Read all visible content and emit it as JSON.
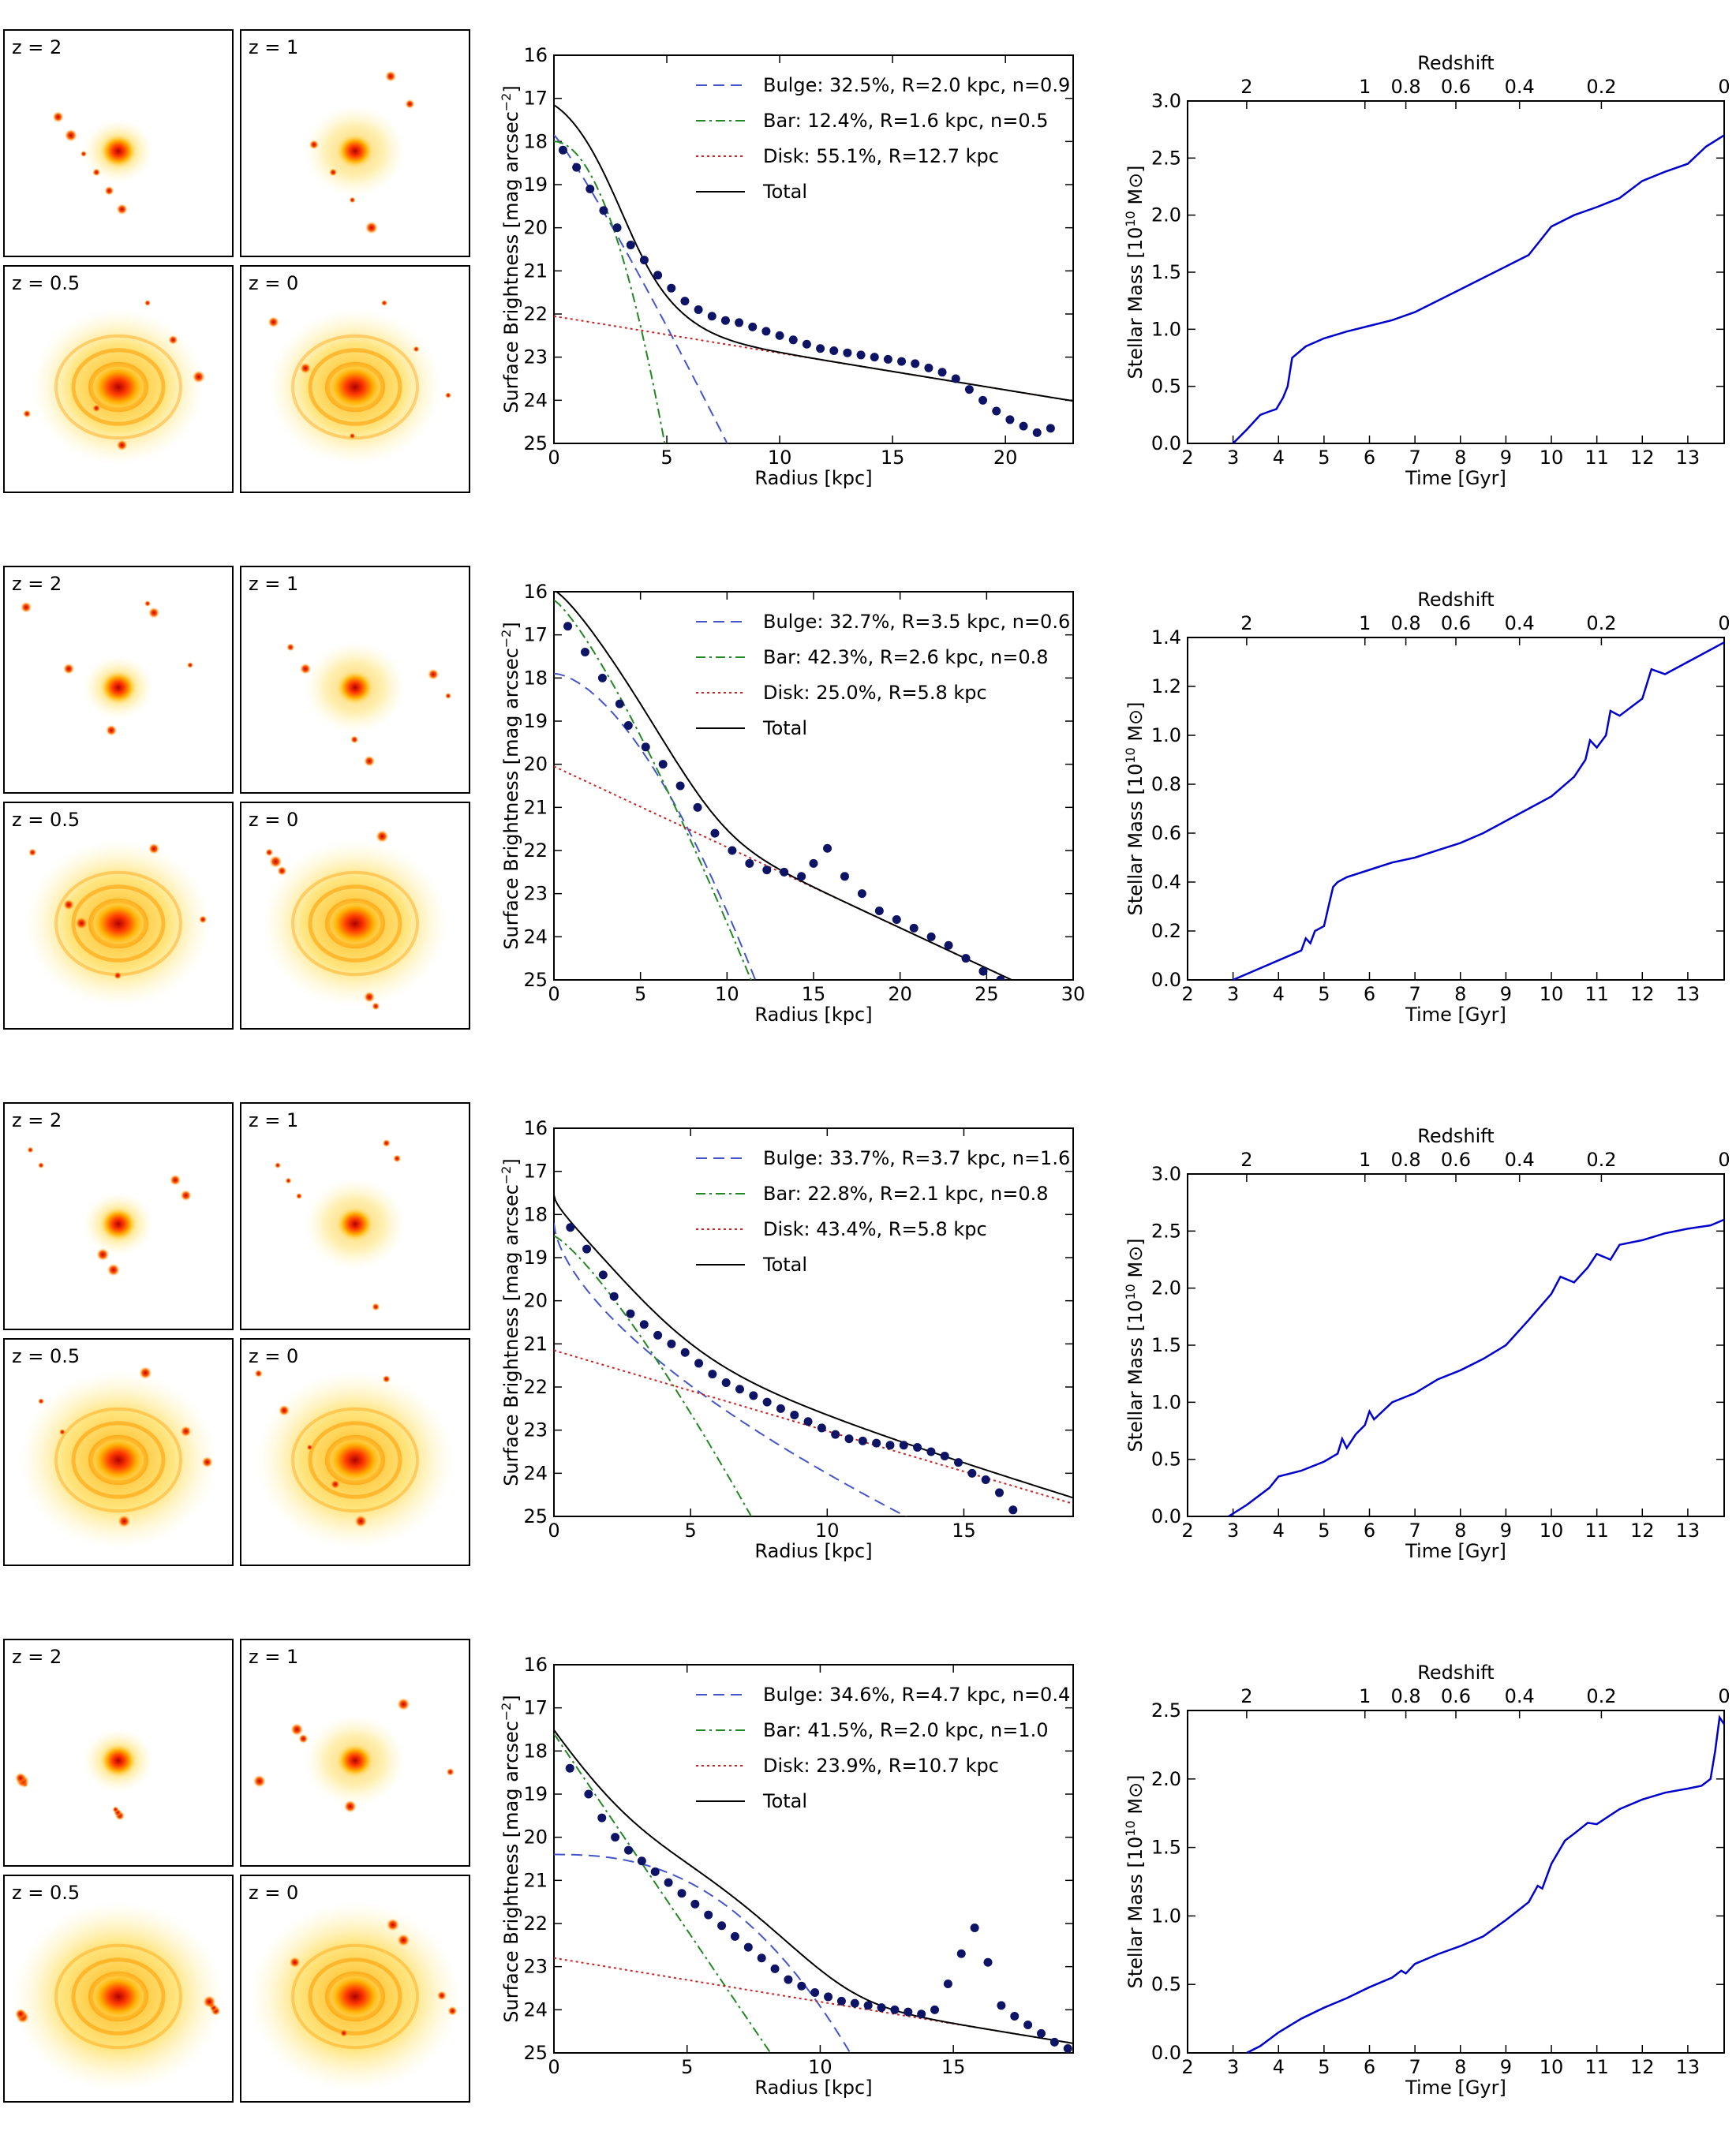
{
  "figure": {
    "colors": {
      "bulge": "#4455cc",
      "bar": "#228822",
      "disk": "#cc2222",
      "total": "#000000",
      "points": "#0d1466",
      "mass": "#0000cc"
    }
  },
  "rows": [
    {
      "image_labels": [
        "z = 2",
        "z = 1",
        "z = 0.5",
        "z = 0"
      ],
      "profile": {
        "type": "line",
        "xlabel": "Radius [kpc]",
        "ylabel": "Surface Brightness [mag arcsec$^{-2}$]",
        "ylabel_main": "Surface Brightness [mag arcsec",
        "ylabel_sup": "−2",
        "ylabel_end": "]",
        "xlim": [
          0,
          23
        ],
        "ylim": [
          25,
          16
        ],
        "xticks": [
          0,
          5,
          10,
          15,
          20
        ],
        "yticks": [
          16,
          17,
          18,
          19,
          20,
          21,
          22,
          23,
          24,
          25
        ],
        "components": {
          "bulge": {
            "label": "Bulge:  32.5%, R=2.0 kpc, n=0.9",
            "mu0": 17.85,
            "re": 2.0,
            "n": 0.9
          },
          "bar": {
            "label": "Bar:  12.4%, R=1.6 kpc, n=0.5",
            "mu0": 18.0,
            "re": 1.6,
            "n": 0.5
          },
          "disk": {
            "label": "Disk:  55.1%, R=12.7 kpc",
            "mu0": 22.05,
            "h": 12.7
          },
          "total": {
            "label": "Total"
          }
        },
        "points": {
          "r": [
            0.4,
            1.0,
            1.6,
            2.2,
            2.8,
            3.4,
            4.0,
            4.6,
            5.2,
            5.8,
            6.4,
            7.0,
            7.6,
            8.2,
            8.8,
            9.4,
            10.0,
            10.6,
            11.2,
            11.8,
            12.4,
            13.0,
            13.6,
            14.2,
            14.8,
            15.4,
            16.0,
            16.6,
            17.2,
            17.8,
            18.4,
            19.0,
            19.6,
            20.2,
            20.8,
            21.4,
            22.0
          ],
          "mu": [
            18.2,
            18.6,
            19.1,
            19.6,
            20.0,
            20.4,
            20.75,
            21.1,
            21.4,
            21.7,
            21.9,
            22.05,
            22.15,
            22.2,
            22.3,
            22.4,
            22.5,
            22.6,
            22.7,
            22.8,
            22.85,
            22.9,
            22.95,
            23.0,
            23.05,
            23.1,
            23.15,
            23.25,
            23.35,
            23.5,
            23.75,
            24.0,
            24.25,
            24.45,
            24.6,
            24.75,
            24.65
          ]
        }
      },
      "mass": {
        "type": "line",
        "xlabel": "Time [Gyr]",
        "toplabel": "Redshift",
        "ylabel_main": "Stellar Mass [10",
        "ylabel_sup": "10",
        "ylabel_end": " M⊙]",
        "xlim": [
          2,
          13.8
        ],
        "ylim": [
          0,
          3.0
        ],
        "xticks": [
          2,
          3,
          4,
          5,
          6,
          7,
          8,
          9,
          10,
          11,
          12,
          13
        ],
        "yticks": [
          0.0,
          0.5,
          1.0,
          1.5,
          2.0,
          2.5,
          3.0
        ],
        "ytick_labels": [
          "0.0",
          "0.5",
          "1.0",
          "1.5",
          "2.0",
          "2.5",
          "3.0"
        ],
        "z_ticks": [
          {
            "z": "2",
            "t": 3.3
          },
          {
            "z": "1",
            "t": 5.9
          },
          {
            "z": "0.8",
            "t": 6.8
          },
          {
            "z": "0.6",
            "t": 7.9
          },
          {
            "z": "0.4",
            "t": 9.3
          },
          {
            "z": "0.2",
            "t": 11.1
          },
          {
            "z": "0",
            "t": 13.8
          }
        ],
        "t": [
          3.0,
          3.3,
          3.6,
          3.8,
          3.95,
          4.1,
          4.2,
          4.3,
          4.6,
          5.0,
          5.5,
          6.0,
          6.5,
          7.0,
          7.5,
          8.0,
          8.5,
          9.0,
          9.5,
          10.0,
          10.5,
          11.0,
          11.5,
          12.0,
          12.5,
          13.0,
          13.4,
          13.8
        ],
        "m": [
          0.0,
          0.12,
          0.25,
          0.28,
          0.3,
          0.4,
          0.5,
          0.75,
          0.85,
          0.92,
          0.98,
          1.03,
          1.08,
          1.15,
          1.25,
          1.35,
          1.45,
          1.55,
          1.65,
          1.9,
          2.0,
          2.07,
          2.15,
          2.3,
          2.38,
          2.45,
          2.6,
          2.7
        ]
      }
    },
    {
      "image_labels": [
        "z = 2",
        "z = 1",
        "z = 0.5",
        "z = 0"
      ],
      "profile": {
        "type": "line",
        "xlabel": "Radius [kpc]",
        "ylabel": "Surface Brightness [mag arcsec$^{-2}$]",
        "ylabel_main": "Surface Brightness [mag arcsec",
        "ylabel_sup": "−2",
        "ylabel_end": "]",
        "xlim": [
          0,
          30
        ],
        "ylim": [
          25,
          16
        ],
        "xticks": [
          0,
          5,
          10,
          15,
          20,
          25,
          30
        ],
        "yticks": [
          16,
          17,
          18,
          19,
          20,
          21,
          22,
          23,
          24,
          25
        ],
        "components": {
          "bulge": {
            "label": "Bulge:  32.7%, R=3.5 kpc, n=0.6",
            "mu0": 17.9,
            "re": 3.5,
            "n": 0.6
          },
          "bar": {
            "label": "Bar:  42.3%, R=2.6 kpc, n=0.8",
            "mu0": 16.2,
            "re": 2.6,
            "n": 0.8
          },
          "disk": {
            "label": "Disk:  25.0%, R=5.8 kpc",
            "mu0": 20.05,
            "h": 5.8
          },
          "total": {
            "label": "Total"
          }
        },
        "points": {
          "r": [
            0.8,
            1.8,
            2.8,
            3.8,
            4.3,
            5.3,
            6.3,
            7.3,
            8.3,
            9.3,
            10.3,
            11.3,
            12.3,
            13.3,
            14.3,
            15.0,
            15.8,
            16.8,
            17.8,
            18.8,
            19.8,
            20.8,
            21.8,
            22.8,
            23.8,
            24.8,
            25.8
          ],
          "mu": [
            16.8,
            17.4,
            18.0,
            18.6,
            19.1,
            19.6,
            20.0,
            20.5,
            21.0,
            21.6,
            22.0,
            22.3,
            22.45,
            22.5,
            22.6,
            22.3,
            21.95,
            22.6,
            23.0,
            23.4,
            23.6,
            23.8,
            24.0,
            24.2,
            24.5,
            24.8,
            25.0
          ]
        }
      },
      "mass": {
        "type": "line",
        "xlabel": "Time [Gyr]",
        "toplabel": "Redshift",
        "ylabel_main": "Stellar Mass [10",
        "ylabel_sup": "10",
        "ylabel_end": " M⊙]",
        "xlim": [
          2,
          13.8
        ],
        "ylim": [
          0,
          1.4
        ],
        "xticks": [
          2,
          3,
          4,
          5,
          6,
          7,
          8,
          9,
          10,
          11,
          12,
          13
        ],
        "yticks": [
          0.0,
          0.2,
          0.4,
          0.6,
          0.8,
          1.0,
          1.2,
          1.4
        ],
        "ytick_labels": [
          "0.0",
          "0.2",
          "0.4",
          "0.6",
          "0.8",
          "1.0",
          "1.2",
          "1.4"
        ],
        "z_ticks": [
          {
            "z": "2",
            "t": 3.3
          },
          {
            "z": "1",
            "t": 5.9
          },
          {
            "z": "0.8",
            "t": 6.8
          },
          {
            "z": "0.6",
            "t": 7.9
          },
          {
            "z": "0.4",
            "t": 9.3
          },
          {
            "z": "0.2",
            "t": 11.1
          },
          {
            "z": "0",
            "t": 13.8
          }
        ],
        "t": [
          3.0,
          3.5,
          4.0,
          4.5,
          4.6,
          4.7,
          4.8,
          5.0,
          5.1,
          5.2,
          5.3,
          5.5,
          6.0,
          6.5,
          7.0,
          7.5,
          8.0,
          8.5,
          9.0,
          9.5,
          10.0,
          10.5,
          10.75,
          10.85,
          11.0,
          11.2,
          11.3,
          11.5,
          12.0,
          12.2,
          12.5,
          13.0,
          13.5,
          13.8
        ],
        "m": [
          0.0,
          0.04,
          0.08,
          0.12,
          0.17,
          0.15,
          0.2,
          0.22,
          0.3,
          0.38,
          0.4,
          0.42,
          0.45,
          0.48,
          0.5,
          0.53,
          0.56,
          0.6,
          0.65,
          0.7,
          0.75,
          0.83,
          0.9,
          0.98,
          0.95,
          1.0,
          1.1,
          1.08,
          1.15,
          1.27,
          1.25,
          1.3,
          1.35,
          1.38
        ]
      }
    },
    {
      "image_labels": [
        "z = 2",
        "z = 1",
        "z = 0.5",
        "z = 0"
      ],
      "profile": {
        "type": "line",
        "xlabel": "Radius [kpc]",
        "ylabel": "Surface Brightness [mag arcsec$^{-2}$]",
        "ylabel_main": "Surface Brightness [mag arcsec",
        "ylabel_sup": "−2",
        "ylabel_end": "]",
        "xlim": [
          0,
          19
        ],
        "ylim": [
          25,
          16
        ],
        "xticks": [
          0,
          5,
          10,
          15
        ],
        "yticks": [
          16,
          17,
          18,
          19,
          20,
          21,
          22,
          23,
          24,
          25
        ],
        "components": {
          "bulge": {
            "label": "Bulge:  33.7%, R=3.7 kpc, n=1.6",
            "mu0": 18.2,
            "re": 3.7,
            "n": 1.6
          },
          "bar": {
            "label": "Bar:  22.8%, R=2.1 kpc, n=0.8",
            "mu0": 18.5,
            "re": 2.1,
            "n": 0.8
          },
          "disk": {
            "label": "Disk:  43.4%, R=5.8 kpc",
            "mu0": 21.15,
            "h": 5.8
          },
          "total": {
            "label": "Total"
          }
        },
        "points": {
          "r": [
            0.6,
            1.2,
            1.8,
            2.2,
            2.8,
            3.3,
            3.8,
            4.3,
            4.8,
            5.3,
            5.8,
            6.3,
            6.8,
            7.3,
            7.8,
            8.3,
            8.8,
            9.3,
            9.8,
            10.3,
            10.8,
            11.3,
            11.8,
            12.3,
            12.8,
            13.3,
            13.8,
            14.3,
            14.8,
            15.3,
            15.8,
            16.3,
            16.8
          ],
          "mu": [
            18.3,
            18.8,
            19.4,
            19.9,
            20.3,
            20.55,
            20.8,
            21.0,
            21.2,
            21.45,
            21.7,
            21.9,
            22.05,
            22.2,
            22.35,
            22.5,
            22.65,
            22.8,
            22.95,
            23.1,
            23.2,
            23.25,
            23.3,
            23.35,
            23.35,
            23.4,
            23.5,
            23.6,
            23.75,
            24.0,
            24.15,
            24.45,
            24.85
          ]
        }
      },
      "mass": {
        "type": "line",
        "xlabel": "Time [Gyr]",
        "toplabel": "Redshift",
        "ylabel_main": "Stellar Mass [10",
        "ylabel_sup": "10",
        "ylabel_end": " M⊙]",
        "xlim": [
          2,
          13.8
        ],
        "ylim": [
          0,
          3.0
        ],
        "xticks": [
          2,
          3,
          4,
          5,
          6,
          7,
          8,
          9,
          10,
          11,
          12,
          13
        ],
        "yticks": [
          0.0,
          0.5,
          1.0,
          1.5,
          2.0,
          2.5,
          3.0
        ],
        "ytick_labels": [
          "0.0",
          "0.5",
          "1.0",
          "1.5",
          "2.0",
          "2.5",
          "3.0"
        ],
        "z_ticks": [
          {
            "z": "2",
            "t": 3.3
          },
          {
            "z": "1",
            "t": 5.9
          },
          {
            "z": "0.8",
            "t": 6.8
          },
          {
            "z": "0.6",
            "t": 7.9
          },
          {
            "z": "0.4",
            "t": 9.3
          },
          {
            "z": "0.2",
            "t": 11.1
          },
          {
            "z": "0",
            "t": 13.8
          }
        ],
        "t": [
          2.9,
          3.3,
          3.8,
          4.0,
          4.5,
          5.0,
          5.3,
          5.4,
          5.5,
          5.7,
          5.9,
          6.0,
          6.1,
          6.5,
          7.0,
          7.5,
          8.0,
          8.5,
          9.0,
          9.5,
          10.0,
          10.2,
          10.5,
          10.8,
          11.0,
          11.3,
          11.5,
          12.0,
          12.5,
          13.0,
          13.5,
          13.8
        ],
        "m": [
          0.0,
          0.1,
          0.25,
          0.35,
          0.4,
          0.48,
          0.55,
          0.68,
          0.6,
          0.72,
          0.8,
          0.92,
          0.85,
          1.0,
          1.08,
          1.2,
          1.28,
          1.38,
          1.5,
          1.72,
          1.95,
          2.1,
          2.05,
          2.18,
          2.3,
          2.25,
          2.38,
          2.42,
          2.48,
          2.52,
          2.55,
          2.6
        ]
      }
    },
    {
      "image_labels": [
        "z = 2",
        "z = 1",
        "z = 0.5",
        "z = 0"
      ],
      "profile": {
        "type": "line",
        "xlabel": "Radius [kpc]",
        "ylabel": "Surface Brightness [mag arcsec$^{-2}$]",
        "ylabel_main": "Surface Brightness [mag arcsec",
        "ylabel_sup": "−2",
        "ylabel_end": "]",
        "xlim": [
          0,
          19.5
        ],
        "ylim": [
          25,
          16
        ],
        "xticks": [
          0,
          5,
          10,
          15
        ],
        "yticks": [
          16,
          17,
          18,
          19,
          20,
          21,
          22,
          23,
          24,
          25
        ],
        "components": {
          "bulge": {
            "label": "Bulge:  34.6%, R=4.7 kpc, n=0.4",
            "mu0": 20.4,
            "re": 4.7,
            "n": 0.4
          },
          "bar": {
            "label": "Bar:  41.5%, R=2.0 kpc, n=1.0",
            "mu0": 17.6,
            "re": 2.0,
            "n": 1.0
          },
          "disk": {
            "label": "Disk:  23.9%, R=10.7 kpc",
            "mu0": 22.8,
            "h": 10.7
          },
          "total": {
            "label": "Total"
          }
        },
        "points": {
          "r": [
            0.6,
            1.3,
            1.8,
            2.3,
            2.8,
            3.3,
            3.8,
            4.3,
            4.8,
            5.3,
            5.8,
            6.3,
            6.8,
            7.3,
            7.8,
            8.3,
            8.8,
            9.3,
            9.8,
            10.3,
            10.8,
            11.3,
            11.8,
            12.3,
            12.8,
            13.3,
            13.8,
            14.3,
            14.8,
            15.3,
            15.8,
            16.3,
            16.8,
            17.3,
            17.8,
            18.3,
            18.8,
            19.3
          ],
          "mu": [
            18.4,
            19.0,
            19.55,
            20.0,
            20.3,
            20.55,
            20.8,
            21.05,
            21.3,
            21.55,
            21.8,
            22.05,
            22.3,
            22.55,
            22.8,
            23.05,
            23.3,
            23.45,
            23.6,
            23.7,
            23.8,
            23.85,
            23.9,
            23.95,
            24.0,
            24.05,
            24.1,
            24.0,
            23.4,
            22.7,
            22.1,
            22.9,
            23.9,
            24.15,
            24.35,
            24.55,
            24.75,
            24.9
          ]
        }
      },
      "mass": {
        "type": "line",
        "xlabel": "Time [Gyr]",
        "toplabel": "Redshift",
        "ylabel_main": "Stellar Mass [10",
        "ylabel_sup": "10",
        "ylabel_end": " M⊙]",
        "xlim": [
          2,
          13.8
        ],
        "ylim": [
          0,
          2.5
        ],
        "xticks": [
          2,
          3,
          4,
          5,
          6,
          7,
          8,
          9,
          10,
          11,
          12,
          13
        ],
        "yticks": [
          0.0,
          0.5,
          1.0,
          1.5,
          2.0,
          2.5
        ],
        "ytick_labels": [
          "0.0",
          "0.5",
          "1.0",
          "1.5",
          "2.0",
          "2.5"
        ],
        "z_ticks": [
          {
            "z": "2",
            "t": 3.3
          },
          {
            "z": "1",
            "t": 5.9
          },
          {
            "z": "0.8",
            "t": 6.8
          },
          {
            "z": "0.6",
            "t": 7.9
          },
          {
            "z": "0.4",
            "t": 9.3
          },
          {
            "z": "0.2",
            "t": 11.1
          },
          {
            "z": "0",
            "t": 13.8
          }
        ],
        "t": [
          3.3,
          3.6,
          4.0,
          4.5,
          5.0,
          5.5,
          6.0,
          6.5,
          6.7,
          6.8,
          7.0,
          7.5,
          8.0,
          8.5,
          9.0,
          9.5,
          9.7,
          9.8,
          10.0,
          10.3,
          10.5,
          10.8,
          11.0,
          11.5,
          12.0,
          12.5,
          13.0,
          13.3,
          13.5,
          13.6,
          13.7,
          13.8
        ],
        "m": [
          0.0,
          0.05,
          0.15,
          0.25,
          0.33,
          0.4,
          0.48,
          0.55,
          0.6,
          0.58,
          0.65,
          0.72,
          0.78,
          0.85,
          0.97,
          1.1,
          1.22,
          1.2,
          1.38,
          1.55,
          1.6,
          1.68,
          1.67,
          1.78,
          1.85,
          1.9,
          1.93,
          1.95,
          2.0,
          2.2,
          2.45,
          2.4
        ]
      }
    }
  ]
}
